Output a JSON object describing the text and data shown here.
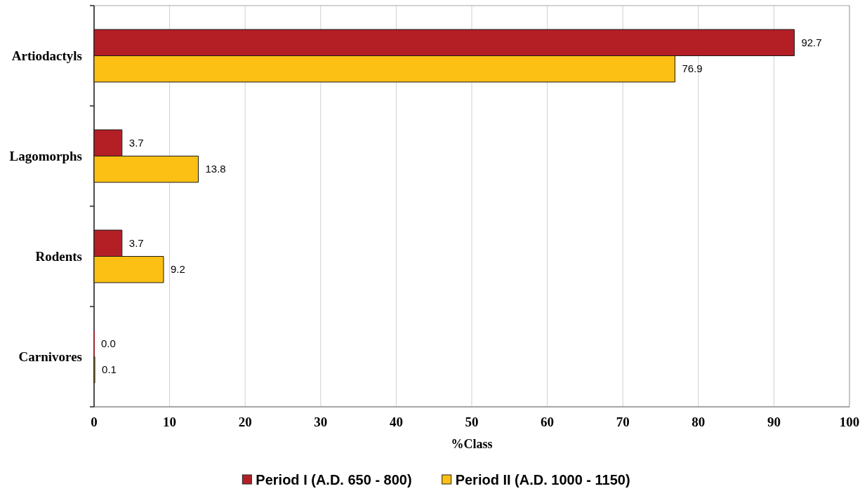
{
  "chart_data": {
    "type": "bar",
    "orientation": "horizontal",
    "xlabel": "%Class",
    "categories": [
      "Artiodactyls",
      "Lagomorphs",
      "Rodents",
      "Carnivores"
    ],
    "series": [
      {
        "name": "Period I (A.D. 650 - 800)",
        "color": "#b41f26",
        "values": [
          92.7,
          3.7,
          3.7,
          0.0
        ],
        "value_labels": [
          "92.7",
          "3.7",
          "3.7",
          "0.0"
        ]
      },
      {
        "name": "Period II (A.D. 1000 - 1150)",
        "color": "#fbc013",
        "values": [
          76.9,
          13.8,
          9.2,
          0.1
        ],
        "value_labels": [
          "76.9",
          "13.8",
          "9.2",
          "0.1"
        ]
      }
    ],
    "xlim": [
      0,
      100
    ],
    "xticks": [
      0,
      10,
      20,
      30,
      40,
      50,
      60,
      70,
      80,
      90,
      100
    ],
    "grid": "x",
    "legend": "bottom"
  }
}
